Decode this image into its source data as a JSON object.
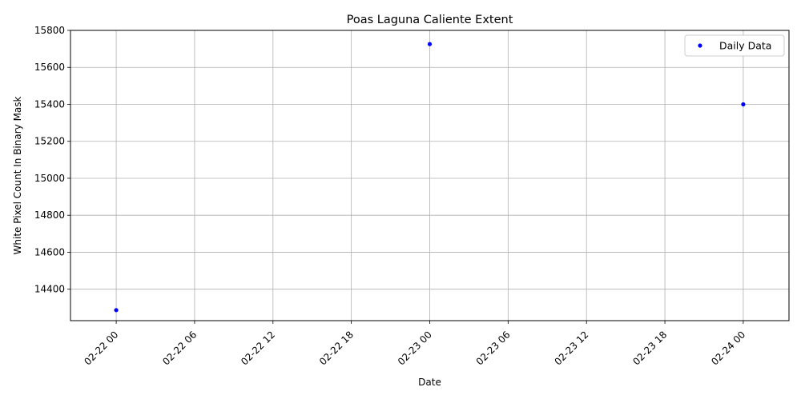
{
  "chart_data": {
    "type": "scatter",
    "title": "Poas Laguna Caliente Extent",
    "xlabel": "Date",
    "ylabel": "White Pixel Count In Binary Mask",
    "x_ticks": [
      "02-22 00",
      "02-22 06",
      "02-22 12",
      "02-22 18",
      "02-23 00",
      "02-23 06",
      "02-23 12",
      "02-23 18",
      "02-24 00"
    ],
    "y_ticks": [
      "14400",
      "14600",
      "14800",
      "15000",
      "15200",
      "15400",
      "15600",
      "15800"
    ],
    "ylim": [
      14230,
      15800
    ],
    "x_range_hours": [
      -3.5,
      51.5
    ],
    "grid": true,
    "legend_position": "top-right",
    "series": [
      {
        "name": "Daily Data",
        "color": "#0000ff",
        "x": [
          "02-22 00",
          "02-23 00",
          "02-24 00"
        ],
        "y": [
          14287,
          15726,
          15400
        ]
      }
    ]
  }
}
